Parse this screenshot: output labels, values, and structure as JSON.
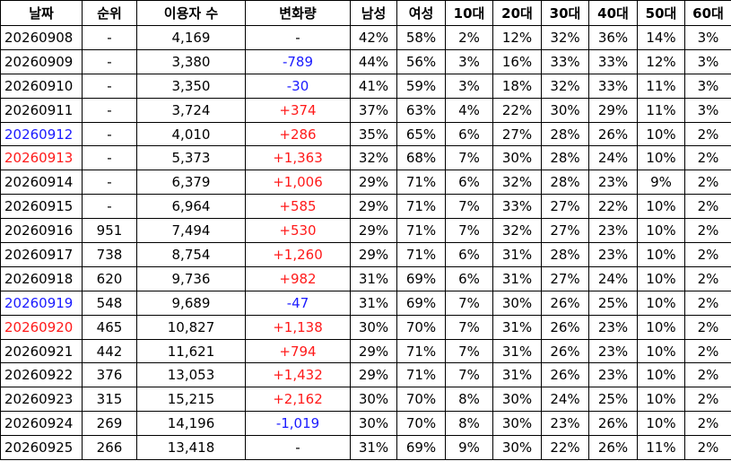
{
  "table": {
    "headers": [
      "날짜",
      "순위",
      "이용자 수",
      "변화량",
      "남성",
      "여성",
      "10대",
      "20대",
      "30대",
      "40대",
      "50대",
      "60대"
    ],
    "rows": [
      {
        "cells": [
          "20260908",
          "-",
          "4,169",
          "-",
          "42%",
          "58%",
          "2%",
          "12%",
          "32%",
          "36%",
          "14%",
          "3%"
        ]
      },
      {
        "cells": [
          "20260909",
          "-",
          "3,380",
          "-789",
          "44%",
          "56%",
          "3%",
          "16%",
          "33%",
          "33%",
          "12%",
          "3%"
        ]
      },
      {
        "cells": [
          "20260910",
          "-",
          "3,350",
          "-30",
          "41%",
          "59%",
          "3%",
          "18%",
          "32%",
          "33%",
          "11%",
          "3%"
        ]
      },
      {
        "cells": [
          "20260911",
          "-",
          "3,724",
          "+374",
          "37%",
          "63%",
          "4%",
          "22%",
          "30%",
          "29%",
          "11%",
          "3%"
        ]
      },
      {
        "cells": [
          "20260912",
          "-",
          "4,010",
          "+286",
          "35%",
          "65%",
          "6%",
          "27%",
          "28%",
          "26%",
          "10%",
          "2%"
        ],
        "date_color": "#1a1aff"
      },
      {
        "cells": [
          "20260913",
          "-",
          "5,373",
          "+1,363",
          "32%",
          "68%",
          "7%",
          "30%",
          "28%",
          "24%",
          "10%",
          "2%"
        ],
        "date_color": "#ff1a1a"
      },
      {
        "cells": [
          "20260914",
          "-",
          "6,379",
          "+1,006",
          "29%",
          "71%",
          "6%",
          "32%",
          "28%",
          "23%",
          "9%",
          "2%"
        ]
      },
      {
        "cells": [
          "20260915",
          "-",
          "6,964",
          "+585",
          "29%",
          "71%",
          "7%",
          "33%",
          "27%",
          "22%",
          "10%",
          "2%"
        ]
      },
      {
        "cells": [
          "20260916",
          "951",
          "7,494",
          "+530",
          "29%",
          "71%",
          "7%",
          "32%",
          "27%",
          "23%",
          "10%",
          "2%"
        ]
      },
      {
        "cells": [
          "20260917",
          "738",
          "8,754",
          "+1,260",
          "29%",
          "71%",
          "6%",
          "31%",
          "28%",
          "23%",
          "10%",
          "2%"
        ]
      },
      {
        "cells": [
          "20260918",
          "620",
          "9,736",
          "+982",
          "31%",
          "69%",
          "6%",
          "31%",
          "27%",
          "24%",
          "10%",
          "2%"
        ]
      },
      {
        "cells": [
          "20260919",
          "548",
          "9,689",
          "-47",
          "31%",
          "69%",
          "7%",
          "30%",
          "26%",
          "25%",
          "10%",
          "2%"
        ],
        "date_color": "#1a1aff"
      },
      {
        "cells": [
          "20260920",
          "465",
          "10,827",
          "+1,138",
          "30%",
          "70%",
          "7%",
          "31%",
          "26%",
          "23%",
          "10%",
          "2%"
        ],
        "date_color": "#ff1a1a"
      },
      {
        "cells": [
          "20260921",
          "442",
          "11,621",
          "+794",
          "29%",
          "71%",
          "7%",
          "31%",
          "26%",
          "23%",
          "10%",
          "2%"
        ]
      },
      {
        "cells": [
          "20260922",
          "376",
          "13,053",
          "+1,432",
          "29%",
          "71%",
          "7%",
          "31%",
          "26%",
          "23%",
          "10%",
          "2%"
        ]
      },
      {
        "cells": [
          "20260923",
          "315",
          "15,215",
          "+2,162",
          "30%",
          "70%",
          "8%",
          "30%",
          "24%",
          "25%",
          "10%",
          "2%"
        ]
      },
      {
        "cells": [
          "20260924",
          "269",
          "14,196",
          "-1,019",
          "30%",
          "70%",
          "8%",
          "30%",
          "23%",
          "26%",
          "10%",
          "2%"
        ]
      },
      {
        "cells": [
          "20260925",
          "266",
          "13,418",
          "-",
          "31%",
          "69%",
          "9%",
          "30%",
          "22%",
          "26%",
          "11%",
          "2%"
        ]
      }
    ]
  }
}
